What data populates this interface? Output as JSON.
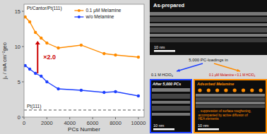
{
  "chart_data": {
    "type": "line",
    "xlabel": "PCs Number",
    "ylabel": "jₖ / mA cm⁻²geo",
    "x": [
      100,
      500,
      1000,
      1500,
      2000,
      3000,
      5000,
      7000,
      8000,
      10000
    ],
    "series": [
      {
        "name": "0.1 μM Melamine",
        "color": "#FF8C00",
        "marker": "circle",
        "values": [
          14.2,
          13.5,
          12.0,
          11.2,
          10.5,
          9.8,
          10.2,
          9.0,
          8.8,
          8.5
        ]
      },
      {
        "name": "w/o Melamine",
        "color": "#1E40FF",
        "marker": "circle",
        "values": [
          7.3,
          6.8,
          6.2,
          5.8,
          5.0,
          4.0,
          3.8,
          3.5,
          3.6,
          3.0
        ]
      }
    ],
    "xlim": [
      0,
      10500
    ],
    "ylim": [
      0,
      16
    ],
    "xticks": [
      0,
      2000,
      4000,
      6000,
      8000,
      10000
    ],
    "yticks": [
      0,
      5,
      10,
      15
    ],
    "grid": false,
    "legend": "upper right",
    "reference_lines": [
      {
        "value": 1.0,
        "label": "Pt(111)",
        "color": "#555555",
        "line_style": "dashed"
      }
    ],
    "annotations": [
      {
        "text": "Pt/Cantor/Pt(111)"
      },
      {
        "text": "×2.0",
        "color": "#CC0000"
      },
      {
        "text": "As-prepared"
      },
      {
        "text": "10 nm"
      },
      {
        "text": "5,000 PC-loadings in"
      },
      {
        "text": "0.1 M HClO₄"
      },
      {
        "text": "0.1 μM Melamine • 0.1 M HClO₄",
        "color": "#CC0000"
      },
      {
        "text": "Adsorbed Melamine",
        "color": "#FF8C00"
      },
      {
        "text": "→ suppression of surface roughening,\n  accompanied by active diffusion of\n  HEA elements",
        "color": "#FF8C00"
      },
      {
        "text": "After 5,000 PCs"
      }
    ]
  }
}
